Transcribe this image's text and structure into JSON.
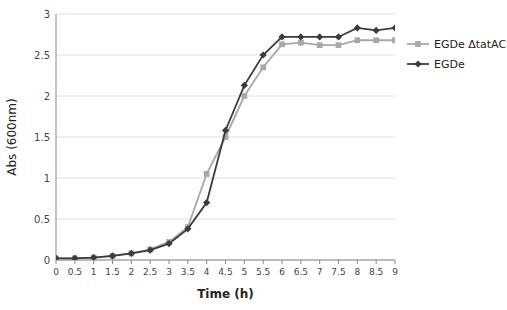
{
  "chart_data": {
    "type": "line",
    "x": [
      0,
      0.5,
      1,
      1.5,
      2,
      2.5,
      3,
      3.5,
      4,
      4.5,
      5,
      5.5,
      6,
      6.5,
      7,
      7.5,
      8,
      8.5,
      9
    ],
    "series": [
      {
        "name": "EGDe ΔtatAC",
        "color": "#a8a8a8",
        "marker": "square",
        "values": [
          0.02,
          0.02,
          0.03,
          0.05,
          0.08,
          0.13,
          0.22,
          0.4,
          1.05,
          1.5,
          2.0,
          2.35,
          2.63,
          2.65,
          2.62,
          2.62,
          2.68,
          2.68,
          2.68
        ]
      },
      {
        "name": "EGDe",
        "color": "#3c3c3c",
        "marker": "diamond",
        "values": [
          0.02,
          0.02,
          0.03,
          0.05,
          0.08,
          0.12,
          0.2,
          0.38,
          0.7,
          1.58,
          2.13,
          2.5,
          2.72,
          2.72,
          2.72,
          2.72,
          2.83,
          2.8,
          2.83
        ]
      }
    ],
    "xlabel": "Time (h)",
    "ylabel": "Abs (600nm)",
    "xlim": [
      0,
      9
    ],
    "ylim": [
      0,
      3.0
    ],
    "xticks": [
      0,
      0.5,
      1,
      1.5,
      2,
      2.5,
      3,
      3.5,
      4,
      4.5,
      5,
      5.5,
      6,
      6.5,
      7,
      7.5,
      8,
      8.5,
      9
    ],
    "yticks": [
      0,
      0.5,
      1,
      1.5,
      2,
      2.5,
      3
    ],
    "grid": true,
    "legend": "right"
  }
}
